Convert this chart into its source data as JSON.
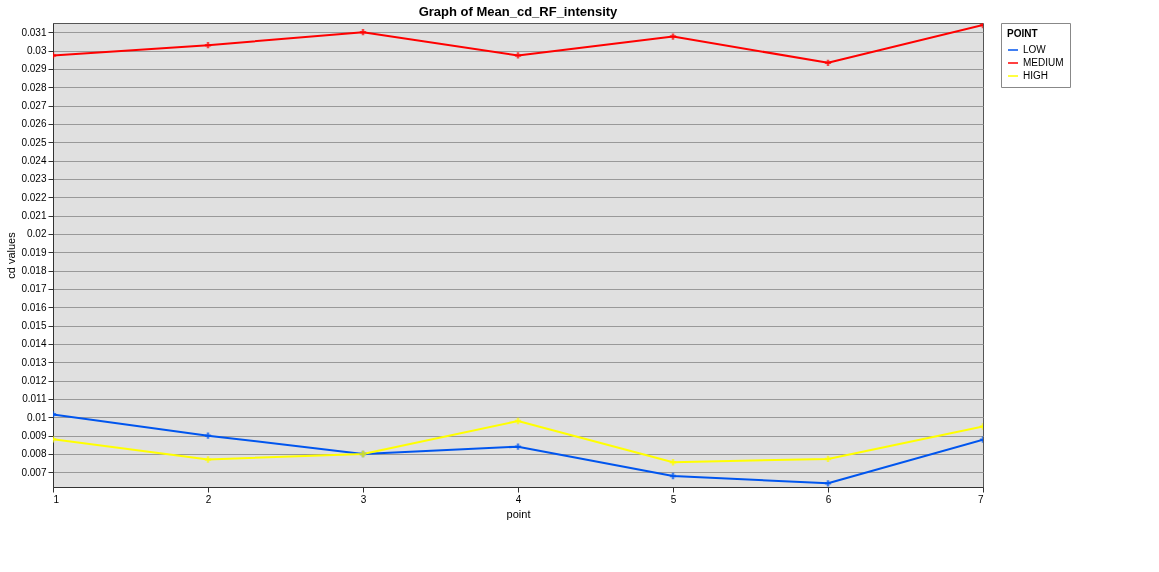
{
  "chart_data": {
    "type": "line",
    "title": "Graph of Mean_cd_RF_intensity",
    "xlabel": "point",
    "ylabel": "cd values",
    "legend_title": "POINT",
    "x": [
      1,
      2,
      3,
      4,
      5,
      6,
      7
    ],
    "series": [
      {
        "name": "LOW",
        "color": "#0055ee",
        "values": [
          0.01016,
          0.009,
          0.008,
          0.0084,
          0.0068,
          0.0064,
          0.00878
        ]
      },
      {
        "name": "MEDIUM",
        "color": "#ff0000",
        "values": [
          0.02973,
          0.03029,
          0.031,
          0.02973,
          0.03076,
          0.02933,
          0.03139
        ]
      },
      {
        "name": "HIGH",
        "color": "#ffff00",
        "values": [
          0.0088,
          0.0077,
          0.008,
          0.0098,
          0.00755,
          0.00773,
          0.0095
        ]
      }
    ],
    "xlim": [
      1,
      7
    ],
    "xticks": [
      1,
      2,
      3,
      4,
      5,
      6,
      7
    ],
    "ylim": [
      0.0062,
      0.0315
    ],
    "yticks": [
      0.007,
      0.008,
      0.009,
      0.01,
      0.011,
      0.012,
      0.013,
      0.014,
      0.015,
      0.016,
      0.017,
      0.018,
      0.019,
      0.02,
      0.021,
      0.022,
      0.023,
      0.024,
      0.025,
      0.026,
      0.027,
      0.028,
      0.029,
      0.03,
      0.031
    ],
    "grid": "y",
    "legend": "top right",
    "marker": "cross",
    "line_style": "solid"
  }
}
